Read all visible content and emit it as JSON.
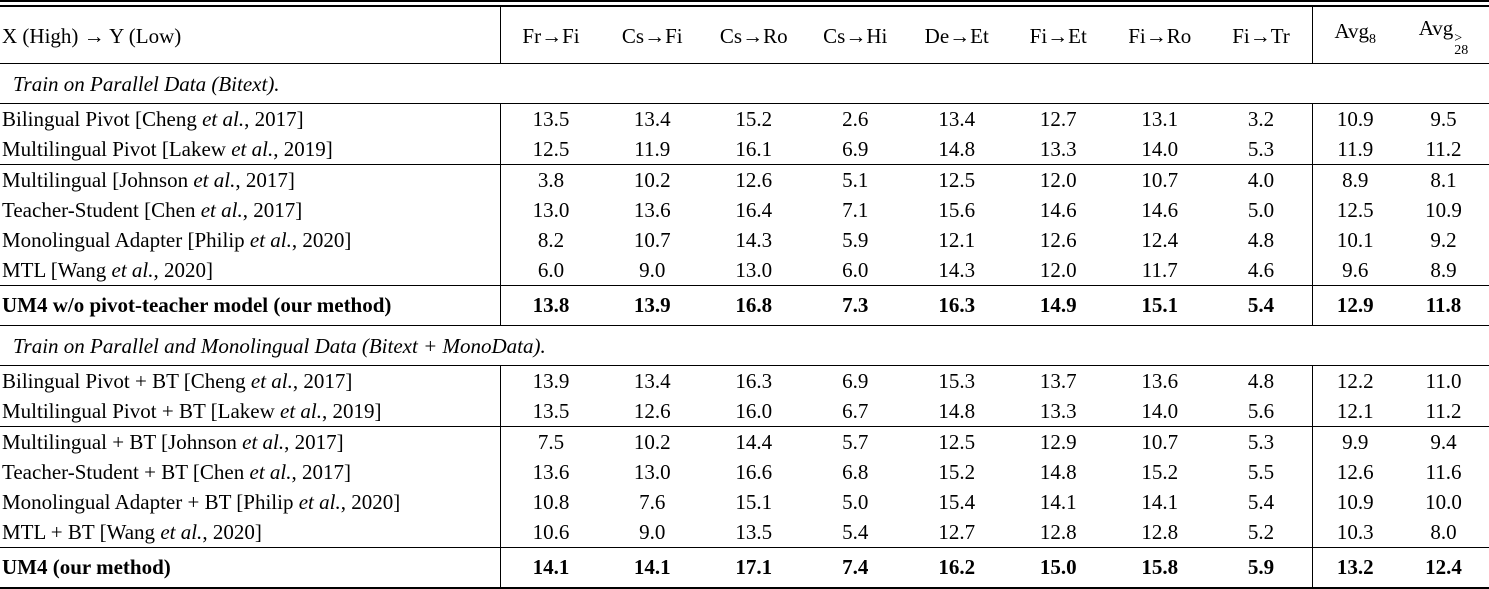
{
  "table": {
    "header": {
      "label": "X (High) → Y (Low)",
      "pairs": [
        "Fr→Fi",
        "Cs→Fi",
        "Cs→Ro",
        "Cs→Hi",
        "De→Et",
        "Fi→Et",
        "Fi→Ro",
        "Fi→Tr"
      ],
      "avg8_base": "Avg",
      "avg8_sub": "8",
      "avg28_base": "Avg",
      "avg28_sup": ">",
      "avg28_sub": "28"
    },
    "sections": [
      {
        "title": "Train on Parallel Data (Bitext)."
      },
      {
        "title": "Train on Parallel and Monolingual Data (Bitext + MonoData)."
      }
    ],
    "rows": [
      {
        "pre": "Bilingual Pivot [Cheng ",
        "etal": "et al.",
        "post": ", 2017]",
        "v": [
          "13.5",
          "13.4",
          "15.2",
          "2.6",
          "13.4",
          "12.7",
          "13.1",
          "3.2"
        ],
        "a": [
          "10.9",
          "9.5"
        ]
      },
      {
        "pre": "Multilingual Pivot [Lakew ",
        "etal": "et al.",
        "post": ", 2019]",
        "v": [
          "12.5",
          "11.9",
          "16.1",
          "6.9",
          "14.8",
          "13.3",
          "14.0",
          "5.3"
        ],
        "a": [
          "11.9",
          "11.2"
        ]
      },
      {
        "pre": "Multilingual [Johnson ",
        "etal": "et al.",
        "post": ", 2017]",
        "v": [
          "3.8",
          "10.2",
          "12.6",
          "5.1",
          "12.5",
          "12.0",
          "10.7",
          "4.0"
        ],
        "a": [
          "8.9",
          "8.1"
        ]
      },
      {
        "pre": "Teacher-Student [Chen ",
        "etal": "et al.",
        "post": ", 2017]",
        "v": [
          "13.0",
          "13.6",
          "16.4",
          "7.1",
          "15.6",
          "14.6",
          "14.6",
          "5.0"
        ],
        "a": [
          "12.5",
          "10.9"
        ]
      },
      {
        "pre": "Monolingual Adapter [Philip ",
        "etal": "et al.",
        "post": ", 2020]",
        "v": [
          "8.2",
          "10.7",
          "14.3",
          "5.9",
          "12.1",
          "12.6",
          "12.4",
          "4.8"
        ],
        "a": [
          "10.1",
          "9.2"
        ]
      },
      {
        "pre": "MTL [Wang ",
        "etal": "et al.",
        "post": ", 2020]",
        "v": [
          "6.0",
          "9.0",
          "13.0",
          "6.0",
          "14.3",
          "12.0",
          "11.7",
          "4.6"
        ],
        "a": [
          "9.6",
          "8.9"
        ]
      },
      {
        "pre": "UM4 w/o pivot-teacher model (our method)",
        "etal": "",
        "post": "",
        "v": [
          "13.8",
          "13.9",
          "16.8",
          "7.3",
          "16.3",
          "14.9",
          "15.1",
          "5.4"
        ],
        "a": [
          "12.9",
          "11.8"
        ]
      },
      {
        "pre": "Bilingual Pivot + BT [Cheng ",
        "etal": "et al.",
        "post": ", 2017]",
        "v": [
          "13.9",
          "13.4",
          "16.3",
          "6.9",
          "15.3",
          "13.7",
          "13.6",
          "4.8"
        ],
        "a": [
          "12.2",
          "11.0"
        ]
      },
      {
        "pre": "Multilingual Pivot + BT [Lakew ",
        "etal": "et al.",
        "post": ", 2019]",
        "v": [
          "13.5",
          "12.6",
          "16.0",
          "6.7",
          "14.8",
          "13.3",
          "14.0",
          "5.6"
        ],
        "a": [
          "12.1",
          "11.2"
        ]
      },
      {
        "pre": "Multilingual + BT [Johnson ",
        "etal": "et al.",
        "post": ", 2017]",
        "v": [
          "7.5",
          "10.2",
          "14.4",
          "5.7",
          "12.5",
          "12.9",
          "10.7",
          "5.3"
        ],
        "a": [
          "9.9",
          "9.4"
        ]
      },
      {
        "pre": "Teacher-Student + BT [Chen ",
        "etal": "et al.",
        "post": ", 2017]",
        "v": [
          "13.6",
          "13.0",
          "16.6",
          "6.8",
          "15.2",
          "14.8",
          "15.2",
          "5.5"
        ],
        "a": [
          "12.6",
          "11.6"
        ]
      },
      {
        "pre": "Monolingual Adapter + BT [Philip ",
        "etal": "et al.",
        "post": ", 2020]",
        "v": [
          "10.8",
          "7.6",
          "15.1",
          "5.0",
          "15.4",
          "14.1",
          "14.1",
          "5.4"
        ],
        "a": [
          "10.9",
          "10.0"
        ]
      },
      {
        "pre": "MTL + BT [Wang ",
        "etal": "et al.",
        "post": ", 2020]",
        "v": [
          "10.6",
          "9.0",
          "13.5",
          "5.4",
          "12.7",
          "12.8",
          "12.8",
          "5.2"
        ],
        "a": [
          "10.3",
          "8.0"
        ]
      },
      {
        "pre": "UM4 (our method)",
        "etal": "",
        "post": "",
        "v": [
          "14.1",
          "14.1",
          "17.1",
          "7.4",
          "16.2",
          "15.0",
          "15.8",
          "5.9"
        ],
        "a": [
          "13.2",
          "12.4"
        ]
      }
    ],
    "colors": {
      "text": "#000000",
      "background": "#ffffff",
      "rule": "#000000"
    }
  }
}
